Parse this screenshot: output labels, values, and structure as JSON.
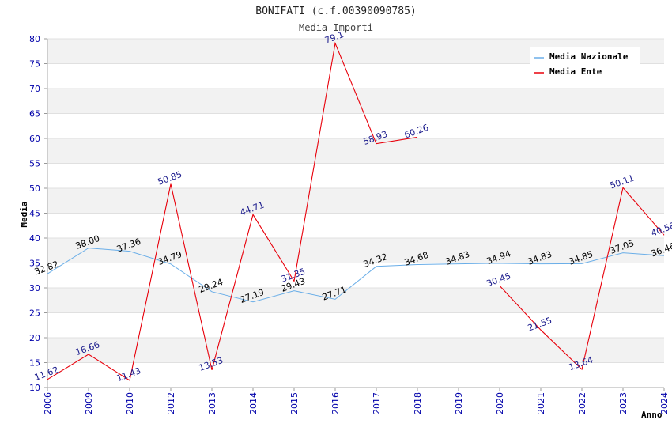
{
  "chart_data": {
    "type": "line",
    "title": "BONIFATI (c.f.00390090785)",
    "subtitle": "Media Importi",
    "xlabel": "Anno",
    "ylabel": "Media",
    "ylim": [
      10,
      80
    ],
    "yticks": [
      "10",
      "15",
      "20",
      "25",
      "30",
      "35",
      "40",
      "45",
      "50",
      "55",
      "60",
      "65",
      "70",
      "75",
      "80"
    ],
    "categories": [
      "2006",
      "2009",
      "2010",
      "2012",
      "2013",
      "2014",
      "2015",
      "2016",
      "2017",
      "2018",
      "2019",
      "2020",
      "2021",
      "2022",
      "2023",
      "2024"
    ],
    "legend_position": "top-right",
    "series": [
      {
        "name": "Media Nazionale",
        "color": "#6aaee8",
        "values": [
          32.82,
          38.0,
          37.36,
          34.79,
          29.24,
          27.19,
          29.43,
          27.71,
          34.32,
          34.68,
          34.83,
          34.94,
          34.83,
          34.85,
          37.05,
          36.46
        ],
        "labels": [
          "32.82",
          "38.00",
          "37.36",
          "34.79",
          "29.24",
          "27.19",
          "29.43",
          "27.71",
          "34.32",
          "34.68",
          "34.83",
          "34.94",
          "34.83",
          "34.85",
          "37.05",
          "36.46"
        ]
      },
      {
        "name": "Media Ente",
        "color": "#e8000b",
        "values": [
          11.62,
          16.66,
          11.43,
          50.85,
          13.53,
          44.71,
          31.35,
          79.1,
          58.93,
          60.26,
          null,
          30.45,
          21.55,
          13.64,
          50.11,
          40.58
        ],
        "labels": [
          "11.62",
          "16.66",
          "11.43",
          "50.85",
          "13.53",
          "44.71",
          "31.35",
          "79.1",
          "58.93",
          "60.26",
          null,
          "30.45",
          "21.55",
          "13.64",
          "50.11",
          "40.58"
        ]
      }
    ]
  }
}
